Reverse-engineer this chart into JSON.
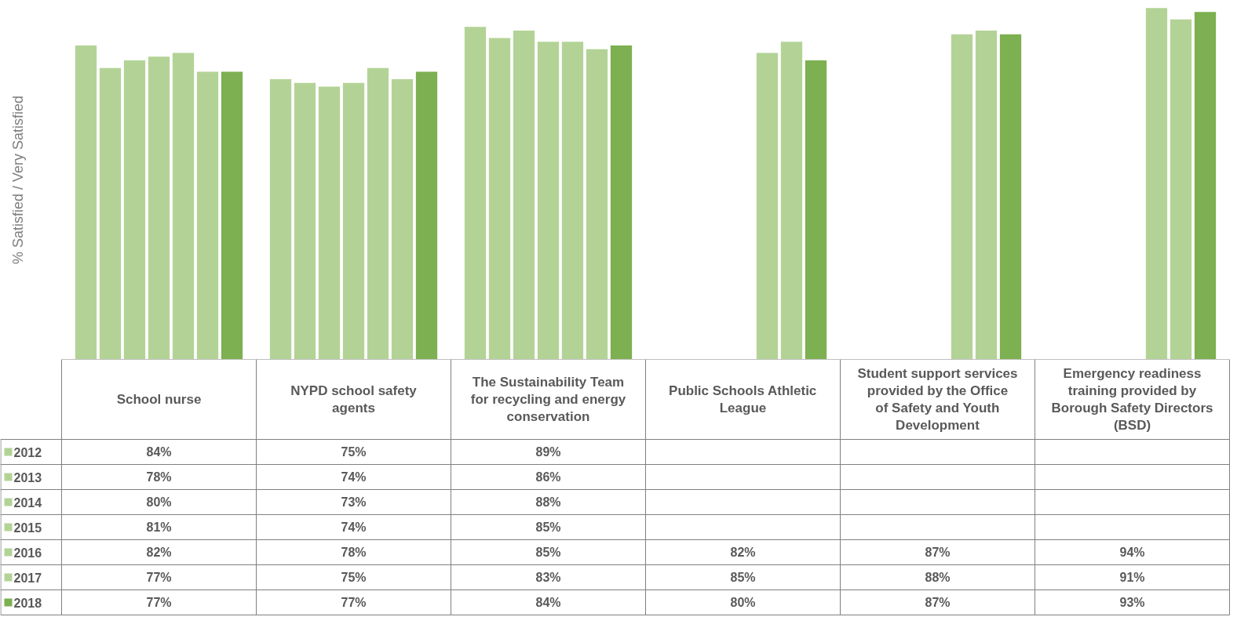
{
  "chart_data": {
    "type": "bar",
    "ylabel": "% Satisfied / Very Satisfied",
    "categories": [
      "School nurse",
      "NYPD school safety agents",
      "The Sustainability Team for recycling and energy conservation",
      "Public Schools Athletic League",
      "Student support services provided by the Office of Safety and Youth Development",
      "Emergency readiness training provided by Borough Safety Directors (BSD)"
    ],
    "series": [
      {
        "name": "2012",
        "color": "#b3d396",
        "values": [
          84,
          75,
          89,
          null,
          null,
          null
        ],
        "value_labels": [
          "84%",
          "75%",
          "89%",
          null,
          null,
          null
        ]
      },
      {
        "name": "2013",
        "color": "#b3d396",
        "values": [
          78,
          74,
          86,
          null,
          null,
          null
        ],
        "value_labels": [
          "78%",
          "74%",
          "86%",
          null,
          null,
          null
        ]
      },
      {
        "name": "2014",
        "color": "#b3d396",
        "values": [
          80,
          73,
          88,
          null,
          null,
          null
        ],
        "value_labels": [
          "80%",
          "73%",
          "88%",
          null,
          null,
          null
        ]
      },
      {
        "name": "2015",
        "color": "#b3d396",
        "values": [
          81,
          74,
          85,
          null,
          null,
          null
        ],
        "value_labels": [
          "81%",
          "74%",
          "85%",
          null,
          null,
          null
        ]
      },
      {
        "name": "2016",
        "color": "#b3d396",
        "values": [
          82,
          78,
          85,
          82,
          87,
          94
        ],
        "value_labels": [
          "82%",
          "78%",
          "85%",
          "82%",
          "87%",
          "94%"
        ]
      },
      {
        "name": "2017",
        "color": "#b3d396",
        "values": [
          77,
          75,
          83,
          85,
          88,
          91
        ],
        "value_labels": [
          "77%",
          "75%",
          "83%",
          "85%",
          "88%",
          "91%"
        ]
      },
      {
        "name": "2018",
        "color": "#7cb050",
        "values": [
          77,
          77,
          84,
          80,
          87,
          93
        ],
        "value_labels": [
          "77%",
          "77%",
          "84%",
          "80%",
          "87%",
          "93%"
        ]
      }
    ],
    "grid": false,
    "legend": "left",
    "tick_labels": false
  }
}
